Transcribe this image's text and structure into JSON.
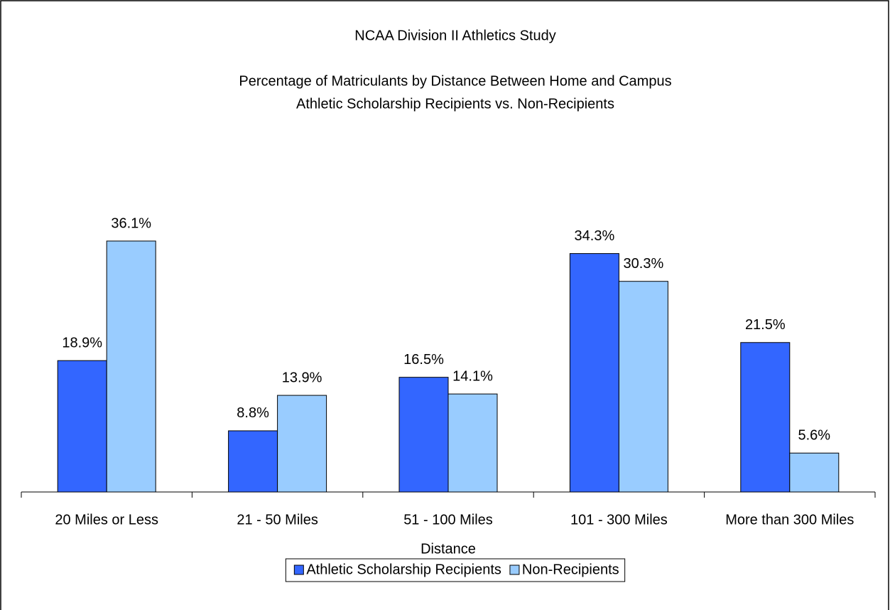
{
  "chart_data": {
    "type": "bar",
    "title": "NCAA Division II Athletics Study",
    "subtitle": [
      "Percentage of Matriculants by Distance Between Home and Campus",
      "Athletic Scholarship Recipients vs. Non-Recipients"
    ],
    "x_label": "Distance",
    "categories": [
      "20 Miles or Less",
      "21 - 50 Miles",
      "51 - 100 Miles",
      "101 - 300 Miles",
      "More than 300 Miles"
    ],
    "series": [
      {
        "name": "Athletic Scholarship Recipients",
        "color": "#3366ff",
        "values": [
          18.9,
          8.8,
          16.5,
          34.3,
          21.5
        ],
        "value_labels": [
          "18.9%",
          "8.8%",
          "16.5%",
          "34.3%",
          "21.5%"
        ]
      },
      {
        "name": "Non-Recipients",
        "color": "#99ccff",
        "values": [
          36.1,
          13.9,
          14.1,
          30.3,
          5.6
        ],
        "value_labels": [
          "36.1%",
          "13.9%",
          "14.1%",
          "30.3%",
          "5.6%"
        ]
      }
    ],
    "legend": "bottom"
  }
}
